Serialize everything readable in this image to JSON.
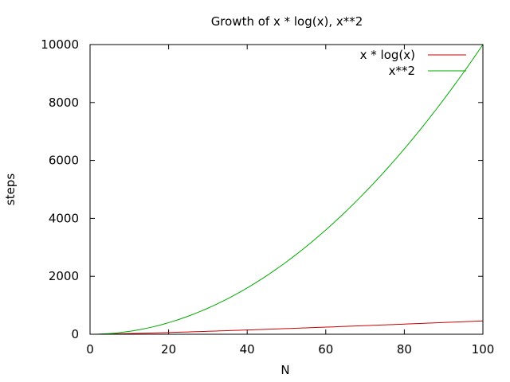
{
  "chart_data": {
    "type": "line",
    "title": "Growth of x * log(x), x**2",
    "xlabel": "N",
    "ylabel": "steps",
    "xlim": [
      0,
      100
    ],
    "ylim": [
      0,
      10000
    ],
    "xticks": [
      0,
      20,
      40,
      60,
      80,
      100
    ],
    "yticks": [
      0,
      2000,
      4000,
      6000,
      8000,
      10000
    ],
    "grid": false,
    "legend_position": "top-right",
    "x": [
      1,
      2,
      3,
      4,
      5,
      6,
      7,
      8,
      9,
      10,
      11,
      12,
      13,
      14,
      15,
      16,
      17,
      18,
      19,
      20,
      21,
      22,
      23,
      24,
      25,
      26,
      27,
      28,
      29,
      30,
      31,
      32,
      33,
      34,
      35,
      36,
      37,
      38,
      39,
      40,
      41,
      42,
      43,
      44,
      45,
      46,
      47,
      48,
      49,
      50,
      51,
      52,
      53,
      54,
      55,
      56,
      57,
      58,
      59,
      60,
      61,
      62,
      63,
      64,
      65,
      66,
      67,
      68,
      69,
      70,
      71,
      72,
      73,
      74,
      75,
      76,
      77,
      78,
      79,
      80,
      81,
      82,
      83,
      84,
      85,
      86,
      87,
      88,
      89,
      90,
      91,
      92,
      93,
      94,
      95,
      96,
      97,
      98,
      99,
      100
    ],
    "series": [
      {
        "name": "x * log(x)",
        "color": "#cc0000",
        "values": [
          0,
          1.39,
          3.3,
          5.55,
          8.05,
          10.75,
          13.62,
          16.64,
          19.78,
          23.03,
          26.38,
          29.82,
          33.34,
          36.95,
          40.62,
          44.36,
          48.16,
          52.03,
          55.94,
          59.91,
          63.93,
          68,
          72.12,
          76.27,
          80.47,
          84.71,
          88.99,
          93.3,
          97.65,
          102.04,
          106.45,
          110.9,
          115.38,
          119.9,
          124.44,
          129.01,
          133.61,
          138.23,
          142.88,
          147.56,
          152.26,
          156.98,
          161.73,
          166.51,
          171.3,
          176.12,
          180.96,
          185.82,
          190.7,
          195.6,
          200.52,
          205.46,
          210.43,
          215.41,
          220.4,
          225.42,
          230.46,
          235.51,
          240.58,
          245.66,
          250.77,
          255.88,
          261.02,
          266.17,
          271.34,
          276.52,
          281.72,
          286.93,
          292.15,
          297.4,
          302.65,
          307.92,
          313.2,
          318.5,
          323.81,
          329.13,
          334.47,
          339.82,
          345.18,
          350.56,
          355.95,
          361.35,
          366.76,
          372.18,
          377.62,
          383.07,
          388.53,
          394,
          399.48,
          404.98,
          410.48,
          416,
          421.52,
          427.06,
          432.61,
          438.17,
          443.74,
          449.32,
          454.91,
          460.52
        ]
      },
      {
        "name": "x**2",
        "color": "#00aa00",
        "values": [
          1,
          4,
          9,
          16,
          25,
          36,
          49,
          64,
          81,
          100,
          121,
          144,
          169,
          196,
          225,
          256,
          289,
          324,
          361,
          400,
          441,
          484,
          529,
          576,
          625,
          676,
          729,
          784,
          841,
          900,
          961,
          1024,
          1089,
          1156,
          1225,
          1296,
          1369,
          1444,
          1521,
          1600,
          1681,
          1764,
          1849,
          1936,
          2025,
          2116,
          2209,
          2304,
          2401,
          2500,
          2601,
          2704,
          2809,
          2916,
          3025,
          3136,
          3249,
          3364,
          3481,
          3600,
          3721,
          3844,
          3969,
          4096,
          4225,
          4356,
          4489,
          4624,
          4761,
          4900,
          5041,
          5184,
          5329,
          5476,
          5625,
          5776,
          5929,
          6084,
          6241,
          6400,
          6561,
          6724,
          6889,
          7056,
          7225,
          7396,
          7569,
          7744,
          7921,
          8100,
          8281,
          8464,
          8649,
          8836,
          9025,
          9216,
          9409,
          9604,
          9801,
          10000
        ]
      }
    ]
  }
}
